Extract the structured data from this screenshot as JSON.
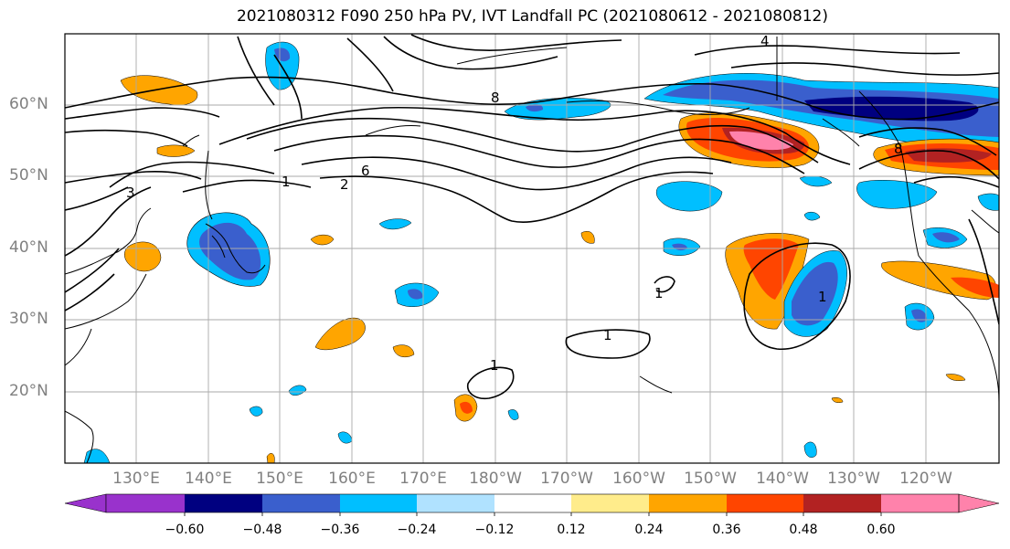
{
  "title": "2021080312 F090 250 hPa PV, IVT Landfall PC (2021080612 - 2021080812)",
  "lat_labels": [
    "60°N",
    "50°N",
    "40°N",
    "30°N",
    "20°N"
  ],
  "lon_labels": [
    "130°E",
    "140°E",
    "150°E",
    "160°E",
    "170°E",
    "180°W",
    "170°W",
    "160°W",
    "150°W",
    "140°W",
    "130°W",
    "120°W"
  ],
  "colorbar": {
    "ticks": [
      "−0.60",
      "−0.48",
      "−0.36",
      "−0.24",
      "−0.12",
      "0.12",
      "0.24",
      "0.36",
      "0.48",
      "0.60"
    ],
    "colors": [
      "#9932CC",
      "#000080",
      "#3A5FCD",
      "#00BFFF",
      "#B0E2FF",
      "#FFFFFF",
      "#FFEC8B",
      "#FFA500",
      "#FF4500",
      "#B22222",
      "#FF82AB"
    ]
  },
  "contour_labels": [
    "1",
    "1",
    "1",
    "1",
    "1",
    "2",
    "3",
    "4",
    "6",
    "8",
    "8"
  ],
  "colors": {
    "contour": "#000000",
    "grid": "#aaaaaa",
    "coast": "#000000",
    "label": "#808080"
  }
}
